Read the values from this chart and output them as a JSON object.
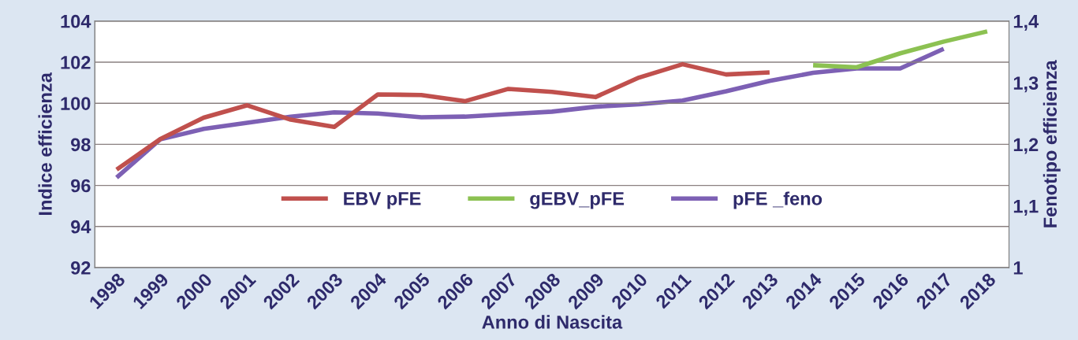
{
  "chart_data": {
    "type": "line",
    "xlabel": "Anno di Nascita",
    "ylabel": "Indice efficienza",
    "y2label": "Fenotipo efficienza",
    "categories": [
      "1998",
      "1999",
      "2000",
      "2001",
      "2002",
      "2003",
      "2004",
      "2005",
      "2006",
      "2007",
      "2008",
      "2009",
      "2010",
      "2011",
      "2012",
      "2013",
      "2014",
      "2015",
      "2016",
      "2017",
      "2018"
    ],
    "series": [
      {
        "name": "EBV pFE",
        "color": "#c0504d",
        "values": [
          96.77,
          98.25,
          99.3,
          99.9,
          99.2,
          98.85,
          100.43,
          100.4,
          100.1,
          100.7,
          100.55,
          100.3,
          101.25,
          101.9,
          101.4,
          101.5,
          null,
          null,
          null,
          null,
          null
        ]
      },
      {
        "name": "gEBV_pFE",
        "color": "#8cc152",
        "values": [
          null,
          null,
          null,
          null,
          null,
          null,
          null,
          null,
          null,
          null,
          null,
          null,
          null,
          null,
          null,
          null,
          101.85,
          101.75,
          102.43,
          103.0,
          103.5
        ]
      },
      {
        "name": "pFE _feno",
        "color": "#7d60b4",
        "axis": "y2",
        "values": [
          1.146,
          1.208,
          1.225,
          1.235,
          1.245,
          1.252,
          1.25,
          1.244,
          1.245,
          1.249,
          1.253,
          1.261,
          1.265,
          1.271,
          1.286,
          1.303,
          1.316,
          1.323,
          1.323,
          1.355,
          null
        ]
      }
    ],
    "ylim": [
      92,
      104
    ],
    "yticks": [
      92,
      94,
      96,
      98,
      100,
      102,
      104
    ],
    "y2lim": [
      1,
      1.4
    ],
    "y2ticks": [
      1,
      {
        "value": 1.1,
        "label": "1,1"
      },
      {
        "value": 1.2,
        "label": "1,2"
      },
      {
        "value": 1.3,
        "label": "1,3"
      },
      {
        "value": 1.4,
        "label": "1,4"
      }
    ],
    "grid": "y",
    "legend": "bottom",
    "line_style": "solid",
    "marker": "none"
  }
}
